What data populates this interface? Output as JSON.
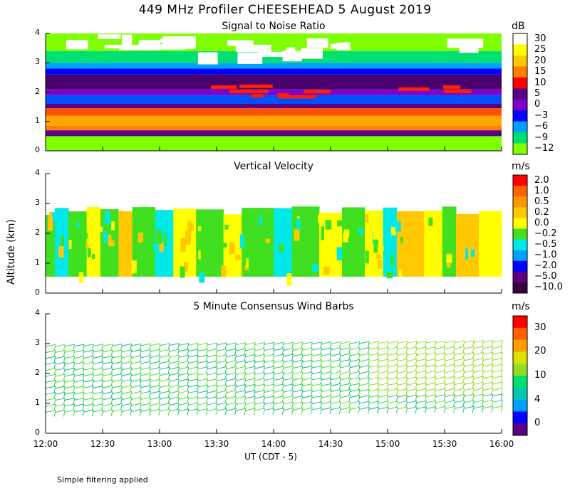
{
  "title": "449 MHz Profiler CHEESEHEAD  5 August 2019",
  "y_axis_label": "Altitude (km)",
  "x_axis_label": "UT  (CDT - 5)",
  "x_ticks": [
    "12:00",
    "12:30",
    "13:00",
    "13:30",
    "14:00",
    "14:30",
    "15:00",
    "15:30",
    "16:00"
  ],
  "footnote": "Simple filtering applied",
  "chart_data": [
    {
      "type": "heatmap",
      "title": "Signal to Noise Ratio",
      "unit": "dB",
      "x_range": [
        "12:00",
        "16:00"
      ],
      "ylim": [
        0,
        4
      ],
      "y_ticks": [
        "0",
        "1",
        "2",
        "3",
        "4"
      ],
      "colorbar_labels": [
        "30",
        "25",
        "20",
        "15",
        "10",
        "5",
        "0",
        "−3",
        "−6",
        "−9",
        "−12"
      ],
      "colorbar_colors": [
        "#ffffff",
        "#ffff00",
        "#ffc800",
        "#ff8000",
        "#ff0000",
        "#5a0080",
        "#8000c8",
        "#0000ff",
        "#00a0ff",
        "#00e070",
        "#80ff00"
      ],
      "layers": [
        {
          "bottom_km": 0.0,
          "top_km": 0.5,
          "color": "#80ff00"
        },
        {
          "bottom_km": 0.5,
          "top_km": 0.7,
          "color": "#5a0080"
        },
        {
          "bottom_km": 0.7,
          "top_km": 0.85,
          "color": "#ff8000"
        },
        {
          "bottom_km": 0.85,
          "top_km": 1.2,
          "color": "#ffa500"
        },
        {
          "bottom_km": 1.2,
          "top_km": 1.45,
          "color": "#ff5000"
        },
        {
          "bottom_km": 1.45,
          "top_km": 1.6,
          "color": "#5a0080"
        },
        {
          "bottom_km": 1.6,
          "top_km": 1.9,
          "color": "#0050ff"
        },
        {
          "bottom_km": 1.9,
          "top_km": 2.1,
          "color": "#8000c8"
        },
        {
          "bottom_km": 2.1,
          "top_km": 2.6,
          "color": "#4a006a"
        },
        {
          "bottom_km": 2.6,
          "top_km": 2.8,
          "color": "#0000ff"
        },
        {
          "bottom_km": 2.8,
          "top_km": 3.0,
          "color": "#00a0ff"
        },
        {
          "bottom_km": 3.0,
          "top_km": 3.4,
          "color": "#00e070"
        },
        {
          "bottom_km": 3.4,
          "top_km": 4.0,
          "color": "#80ff00"
        }
      ]
    },
    {
      "type": "heatmap",
      "title": "Vertical Velocity",
      "unit": "m/s",
      "x_range": [
        "12:00",
        "16:00"
      ],
      "ylim": [
        0,
        4
      ],
      "y_ticks": [
        "0",
        "1",
        "2",
        "3",
        "4"
      ],
      "colorbar_labels": [
        "2.0",
        "1.0",
        "0.5",
        "0.2",
        "0.0",
        "−0.2",
        "−0.5",
        "−1.0",
        "−2.0",
        "−5.0",
        "−10.0"
      ],
      "colorbar_colors": [
        "#ff0000",
        "#ff6000",
        "#ff9600",
        "#ffc800",
        "#ffff00",
        "#40e020",
        "#00e8e8",
        "#00a0ff",
        "#0000ff",
        "#5a0080",
        "#3a0040"
      ],
      "data_region_km": [
        0.55,
        2.9
      ],
      "columns": [
        {
          "t": 0.0,
          "w": 0.02,
          "color": "#40e020"
        },
        {
          "t": 0.02,
          "w": 0.03,
          "color": "#00e8e8"
        },
        {
          "t": 0.05,
          "w": 0.04,
          "color": "#40e020"
        },
        {
          "t": 0.09,
          "w": 0.03,
          "color": "#ffff00"
        },
        {
          "t": 0.12,
          "w": 0.04,
          "color": "#40e020"
        },
        {
          "t": 0.16,
          "w": 0.03,
          "color": "#ffc800"
        },
        {
          "t": 0.19,
          "w": 0.05,
          "color": "#40e020"
        },
        {
          "t": 0.24,
          "w": 0.04,
          "color": "#00e8e8"
        },
        {
          "t": 0.28,
          "w": 0.05,
          "color": "#ffff00"
        },
        {
          "t": 0.33,
          "w": 0.06,
          "color": "#40e020"
        },
        {
          "t": 0.39,
          "w": 0.04,
          "color": "#ffff00"
        },
        {
          "t": 0.43,
          "w": 0.07,
          "color": "#40e020"
        },
        {
          "t": 0.5,
          "w": 0.04,
          "color": "#00e8e8"
        },
        {
          "t": 0.54,
          "w": 0.06,
          "color": "#40e020"
        },
        {
          "t": 0.6,
          "w": 0.05,
          "color": "#ffff00"
        },
        {
          "t": 0.65,
          "w": 0.05,
          "color": "#40e020"
        },
        {
          "t": 0.7,
          "w": 0.04,
          "color": "#ffff00"
        },
        {
          "t": 0.74,
          "w": 0.03,
          "color": "#00e8e8"
        },
        {
          "t": 0.77,
          "w": 0.06,
          "color": "#ffc800"
        },
        {
          "t": 0.83,
          "w": 0.04,
          "color": "#ffff00"
        },
        {
          "t": 0.87,
          "w": 0.03,
          "color": "#40e020"
        },
        {
          "t": 0.9,
          "w": 0.05,
          "color": "#ffc800"
        },
        {
          "t": 0.95,
          "w": 0.05,
          "color": "#ffff00"
        }
      ]
    },
    {
      "type": "scatter",
      "title": "5 Minute Consensus Wind Barbs",
      "unit": "m/s",
      "x_range": [
        "12:00",
        "16:00"
      ],
      "ylim": [
        0,
        4
      ],
      "y_ticks": [
        "0",
        "1",
        "2",
        "3",
        "4"
      ],
      "colorbar_labels": [
        "30",
        "20",
        "10",
        "4",
        "0"
      ],
      "colorbar_colors": [
        "#ff0000",
        "#ff6000",
        "#ffa000",
        "#e0e000",
        "#90e020",
        "#00e070",
        "#00c8b0",
        "#00a0ff",
        "#0000ff",
        "#5a0080"
      ],
      "barb_levels_km": [
        0.7,
        0.9,
        1.1,
        1.3,
        1.5,
        1.7,
        1.9,
        2.1,
        2.3,
        2.5,
        2.7,
        2.9
      ],
      "barb_times": 48,
      "direction": "westerly",
      "typical_speed_ms": [
        5,
        12
      ]
    }
  ]
}
